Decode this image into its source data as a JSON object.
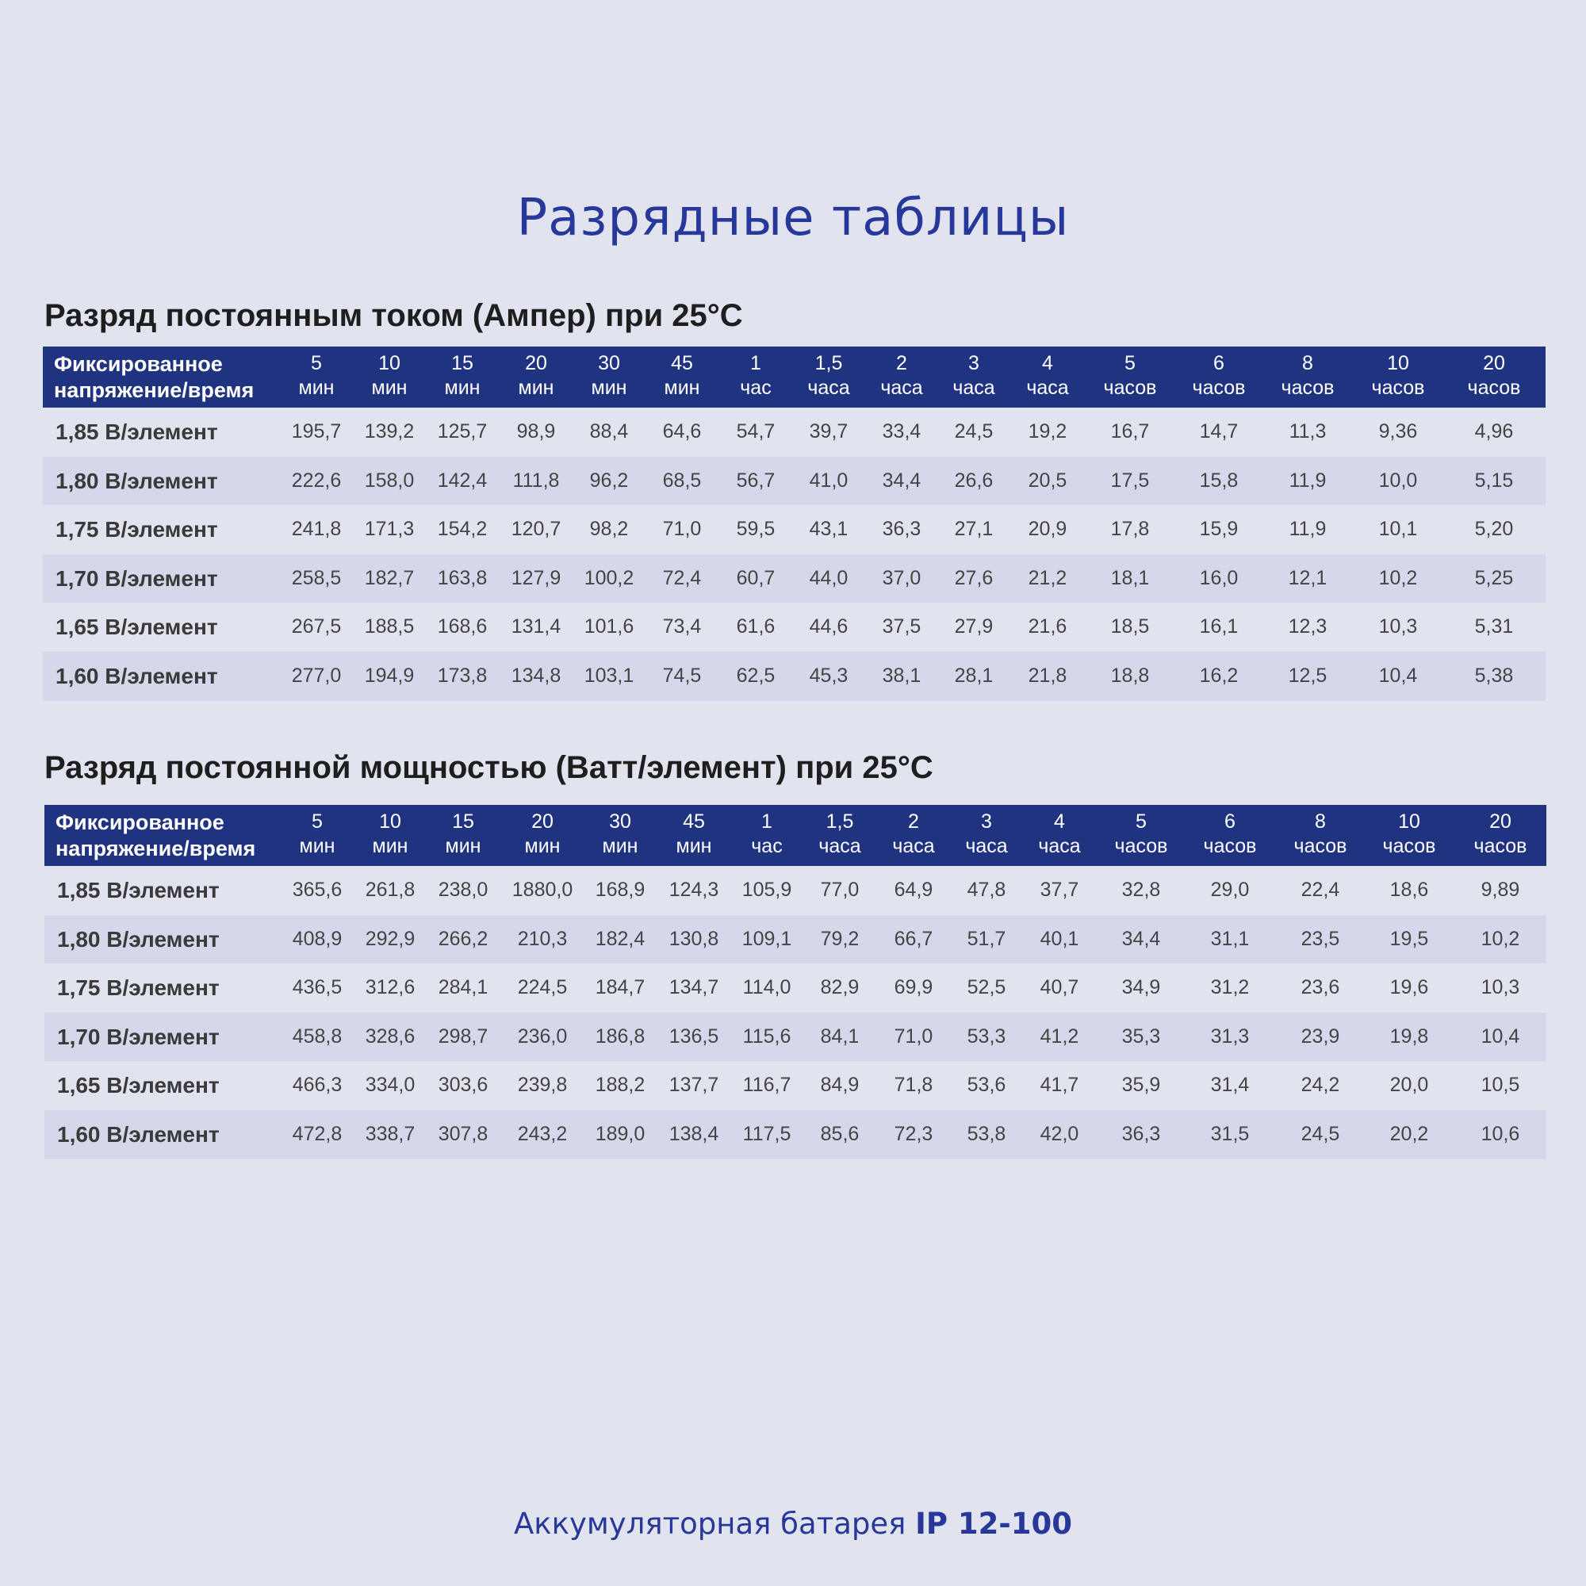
{
  "title": "Разрядные таблицы",
  "colors": {
    "accent": "#27389a",
    "header_bg": "#1f3381",
    "alt_row": "#d5d8ea",
    "background": "#e1e4ef"
  },
  "columns_label": [
    "Фиксированное",
    "напряжение/время"
  ],
  "columns": [
    [
      "5",
      "мин"
    ],
    [
      "10",
      "мин"
    ],
    [
      "15",
      "мин"
    ],
    [
      "20",
      "мин"
    ],
    [
      "30",
      "мин"
    ],
    [
      "45",
      "мин"
    ],
    [
      "1",
      "час"
    ],
    [
      "1,5",
      "часа"
    ],
    [
      "2",
      "часа"
    ],
    [
      "3",
      "часа"
    ],
    [
      "4",
      "часа"
    ],
    [
      "5",
      "часов"
    ],
    [
      "6",
      "часов"
    ],
    [
      "8",
      "часов"
    ],
    [
      "10",
      "часов"
    ],
    [
      "20",
      "часов"
    ]
  ],
  "tables": [
    {
      "heading": "Разряд постоянным током (Ампер) при 25°C",
      "rows": [
        {
          "label": "1,85 В/элемент",
          "values": [
            "195,7",
            "139,2",
            "125,7",
            "98,9",
            "88,4",
            "64,6",
            "54,7",
            "39,7",
            "33,4",
            "24,5",
            "19,2",
            "16,7",
            "14,7",
            "11,3",
            "9,36",
            "4,96"
          ]
        },
        {
          "label": "1,80 В/элемент",
          "values": [
            "222,6",
            "158,0",
            "142,4",
            "111,8",
            "96,2",
            "68,5",
            "56,7",
            "41,0",
            "34,4",
            "26,6",
            "20,5",
            "17,5",
            "15,8",
            "11,9",
            "10,0",
            "5,15"
          ]
        },
        {
          "label": "1,75 В/элемент",
          "values": [
            "241,8",
            "171,3",
            "154,2",
            "120,7",
            "98,2",
            "71,0",
            "59,5",
            "43,1",
            "36,3",
            "27,1",
            "20,9",
            "17,8",
            "15,9",
            "11,9",
            "10,1",
            "5,20"
          ]
        },
        {
          "label": "1,70 В/элемент",
          "values": [
            "258,5",
            "182,7",
            "163,8",
            "127,9",
            "100,2",
            "72,4",
            "60,7",
            "44,0",
            "37,0",
            "27,6",
            "21,2",
            "18,1",
            "16,0",
            "12,1",
            "10,2",
            "5,25"
          ]
        },
        {
          "label": "1,65 В/элемент",
          "values": [
            "267,5",
            "188,5",
            "168,6",
            "131,4",
            "101,6",
            "73,4",
            "61,6",
            "44,6",
            "37,5",
            "27,9",
            "21,6",
            "18,5",
            "16,1",
            "12,3",
            "10,3",
            "5,31"
          ]
        },
        {
          "label": "1,60 В/элемент",
          "values": [
            "277,0",
            "194,9",
            "173,8",
            "134,8",
            "103,1",
            "74,5",
            "62,5",
            "45,3",
            "38,1",
            "28,1",
            "21,8",
            "18,8",
            "16,2",
            "12,5",
            "10,4",
            "5,38"
          ]
        }
      ]
    },
    {
      "heading": "Разряд постоянной мощностью (Ватт/элемент) при 25°C",
      "rows": [
        {
          "label": "1,85 В/элемент",
          "values": [
            "365,6",
            "261,8",
            "238,0",
            "1880,0",
            "168,9",
            "124,3",
            "105,9",
            "77,0",
            "64,9",
            "47,8",
            "37,7",
            "32,8",
            "29,0",
            "22,4",
            "18,6",
            "9,89"
          ]
        },
        {
          "label": "1,80 В/элемент",
          "values": [
            "408,9",
            "292,9",
            "266,2",
            "210,3",
            "182,4",
            "130,8",
            "109,1",
            "79,2",
            "66,7",
            "51,7",
            "40,1",
            "34,4",
            "31,1",
            "23,5",
            "19,5",
            "10,2"
          ]
        },
        {
          "label": "1,75 В/элемент",
          "values": [
            "436,5",
            "312,6",
            "284,1",
            "224,5",
            "184,7",
            "134,7",
            "114,0",
            "82,9",
            "69,9",
            "52,5",
            "40,7",
            "34,9",
            "31,2",
            "23,6",
            "19,6",
            "10,3"
          ]
        },
        {
          "label": "1,70 В/элемент",
          "values": [
            "458,8",
            "328,6",
            "298,7",
            "236,0",
            "186,8",
            "136,5",
            "115,6",
            "84,1",
            "71,0",
            "53,3",
            "41,2",
            "35,3",
            "31,3",
            "23,9",
            "19,8",
            "10,4"
          ]
        },
        {
          "label": "1,65 В/элемент",
          "values": [
            "466,3",
            "334,0",
            "303,6",
            "239,8",
            "188,2",
            "137,7",
            "116,7",
            "84,9",
            "71,8",
            "53,6",
            "41,7",
            "35,9",
            "31,4",
            "24,2",
            "20,0",
            "10,5"
          ]
        },
        {
          "label": "1,60 В/элемент",
          "values": [
            "472,8",
            "338,7",
            "307,8",
            "243,2",
            "189,0",
            "138,4",
            "117,5",
            "85,6",
            "72,3",
            "53,8",
            "42,0",
            "36,3",
            "31,5",
            "24,5",
            "20,2",
            "10,6"
          ]
        }
      ]
    }
  ],
  "footer": {
    "text": "Аккумуляторная батарея ",
    "model": "IP 12-100"
  }
}
